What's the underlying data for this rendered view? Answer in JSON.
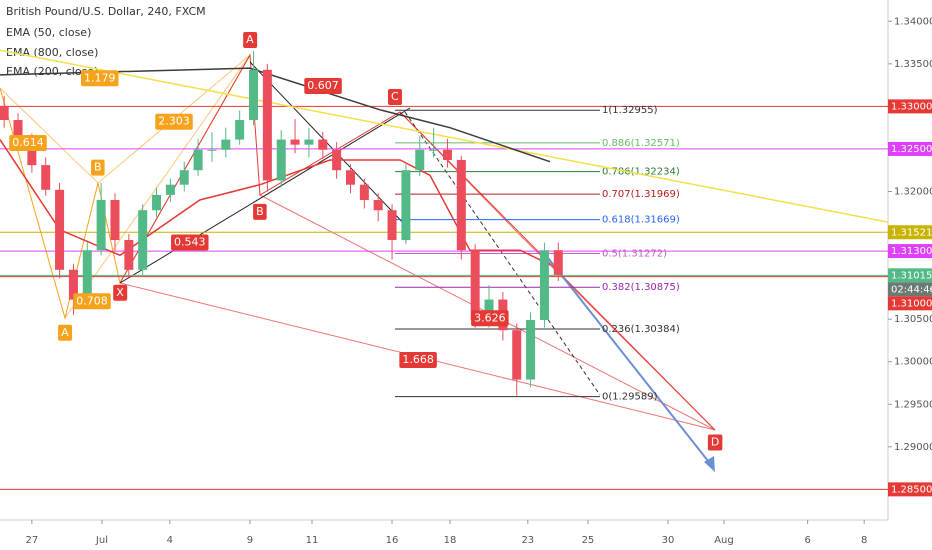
{
  "chart_data": {
    "type": "candlestick",
    "title": "British Pound/U.S. Dollar, 240, FXCM",
    "xlim": [
      -1.15,
      30.9
    ],
    "ylim": [
      1.2814,
      1.3425
    ],
    "xticks": [
      {
        "value": 0,
        "label": "27"
      },
      {
        "value": 2.53,
        "label": "Jul"
      },
      {
        "value": 4.98,
        "label": "4"
      },
      {
        "value": 7.87,
        "label": "9"
      },
      {
        "value": 10.11,
        "label": "11"
      },
      {
        "value": 13.0,
        "label": "16"
      },
      {
        "value": 15.09,
        "label": "18"
      },
      {
        "value": 17.9,
        "label": "23"
      },
      {
        "value": 20.07,
        "label": "25"
      },
      {
        "value": 22.96,
        "label": "30"
      },
      {
        "value": 24.98,
        "label": "Aug"
      },
      {
        "value": 28.0,
        "label": "6"
      },
      {
        "value": 30.04,
        "label": "8"
      }
    ],
    "yticks": [
      {
        "value": 1.34,
        "label": "1.34000"
      },
      {
        "value": 1.335,
        "label": "1.33500"
      },
      {
        "value": 1.32,
        "label": "1.32000"
      },
      {
        "value": 1.305,
        "label": "1.30500"
      },
      {
        "value": 1.3,
        "label": "1.30000"
      },
      {
        "value": 1.295,
        "label": "1.29500"
      },
      {
        "value": 1.29,
        "label": "1.29000"
      }
    ],
    "candles": {
      "up_color": "#53b987",
      "down_color": "#eb4d5c",
      "x": [
        -1,
        -0.5,
        0,
        0.5,
        1,
        1.5,
        2,
        2.5,
        3,
        3.5,
        4,
        4.5,
        5,
        5.5,
        6,
        6.5,
        7,
        7.5,
        8,
        8.5,
        9,
        9.5,
        10,
        10.5,
        11,
        11.5,
        12,
        12.5,
        13,
        13.5,
        14,
        14.5,
        15,
        15.5,
        16,
        16.5,
        17,
        17.5,
        18,
        18.5,
        19
      ],
      "open": [
        1.33,
        1.3284,
        1.3261,
        1.3231,
        1.3202,
        1.3108,
        1.3073,
        1.3131,
        1.319,
        1.3143,
        1.3108,
        1.3178,
        1.3196,
        1.3208,
        1.3225,
        1.3249,
        1.3249,
        1.3261,
        1.3284,
        1.3343,
        1.3213,
        1.3261,
        1.3255,
        1.3261,
        1.3249,
        1.3225,
        1.3208,
        1.319,
        1.3178,
        1.3143,
        1.3225,
        1.3249,
        1.3249,
        1.3237,
        1.3131,
        1.3049,
        1.3073,
        1.3037,
        1.2979,
        1.3049,
        1.3131
      ],
      "high": [
        1.3312,
        1.3292,
        1.3268,
        1.324,
        1.321,
        1.3115,
        1.314,
        1.321,
        1.3198,
        1.315,
        1.3185,
        1.3205,
        1.3215,
        1.3235,
        1.3262,
        1.327,
        1.3275,
        1.3295,
        1.3365,
        1.335,
        1.3272,
        1.3285,
        1.3275,
        1.327,
        1.3258,
        1.3232,
        1.3215,
        1.3198,
        1.3185,
        1.3232,
        1.3265,
        1.3275,
        1.3262,
        1.3242,
        1.3138,
        1.309,
        1.3082,
        1.3045,
        1.3058,
        1.314,
        1.314
      ],
      "low": [
        1.3275,
        1.325,
        1.3222,
        1.3195,
        1.3098,
        1.3055,
        1.3065,
        1.3125,
        1.313,
        1.31,
        1.3102,
        1.317,
        1.3188,
        1.32,
        1.3218,
        1.3235,
        1.324,
        1.3255,
        1.3278,
        1.32,
        1.3205,
        1.3245,
        1.324,
        1.3238,
        1.3215,
        1.3198,
        1.318,
        1.3165,
        1.312,
        1.3138,
        1.3218,
        1.324,
        1.3228,
        1.312,
        1.304,
        1.304,
        1.3025,
        1.296,
        1.297,
        1.304,
        1.3095
      ],
      "close": [
        1.3284,
        1.3261,
        1.3231,
        1.3202,
        1.3108,
        1.3073,
        1.3131,
        1.319,
        1.3143,
        1.3108,
        1.3178,
        1.3196,
        1.3208,
        1.3225,
        1.3249,
        1.3249,
        1.3261,
        1.3284,
        1.3343,
        1.3213,
        1.3261,
        1.3255,
        1.3261,
        1.3249,
        1.3225,
        1.3208,
        1.319,
        1.3178,
        1.3143,
        1.3225,
        1.3249,
        1.3249,
        1.3237,
        1.3131,
        1.3049,
        1.3073,
        1.3037,
        1.2979,
        1.3049,
        1.3131,
        1.3102
      ]
    },
    "series": [
      {
        "name": "EMA (50, close)",
        "color": "#e53935",
        "x": [
          -1.15,
          1.01,
          3.18,
          6.06,
          8.23,
          10.76,
          13.29,
          14.37,
          15.81,
          17.62,
          18.7
        ],
        "values": [
          1.3261,
          1.3155,
          1.3125,
          1.319,
          1.3208,
          1.3237,
          1.3237,
          1.3219,
          1.3131,
          1.3131,
          1.3114
        ]
      },
      {
        "name": "EMA (800, close)",
        "color": "#f2e14c",
        "x": [
          -1.15,
          30.9
        ],
        "values": [
          1.3366,
          1.3164
        ]
      },
      {
        "name": "EMA (200, close)",
        "color": "#3c3c3c",
        "x": [
          -1.15,
          7.87,
          12.56,
          15.09,
          18.7
        ],
        "values": [
          1.3337,
          1.3345,
          1.3296,
          1.3275,
          1.3235
        ]
      }
    ],
    "levels": [
      {
        "value": 1.33,
        "label": "1.33000",
        "color": "#e53935"
      },
      {
        "value": 1.325,
        "label": "1.32500",
        "color": "#e040fb"
      },
      {
        "value": 1.31521,
        "label": "1.31521",
        "color": "#c8b400"
      },
      {
        "value": 1.313,
        "label": "1.31300",
        "color": "#e040fb"
      },
      {
        "value": 1.31015,
        "label": "1.31015",
        "color": "#53b987",
        "countdown": "02:44:46"
      },
      {
        "value": 1.31,
        "label": "1.31000",
        "color": "#e53935"
      },
      {
        "value": 1.285,
        "label": "1.28500",
        "color": "#e53935"
      }
    ],
    "fib_levels": [
      {
        "value": 1.32955,
        "label": "1(1.32955)",
        "color": "#333333"
      },
      {
        "value": 1.32571,
        "label": "0.886(1.32571)",
        "color": "#66bb6a"
      },
      {
        "value": 1.32234,
        "label": "0.786(1.32234)",
        "color": "#2e7d32"
      },
      {
        "value": 1.31969,
        "label": "0.707(1.31969)",
        "color": "#b71c1c"
      },
      {
        "value": 1.31669,
        "label": "0.618(1.31669)",
        "color": "#2962ff"
      },
      {
        "value": 1.31272,
        "label": "0.5(1.31272)",
        "color": "#c060c8"
      },
      {
        "value": 1.30875,
        "label": "0.382(1.30875)",
        "color": "#9c27b0"
      },
      {
        "value": 1.30384,
        "label": "0.236(1.30384)",
        "color": "#333333"
      },
      {
        "value": 1.29589,
        "label": "0(1.29589)",
        "color": "#333333"
      }
    ],
    "annotations": [
      {
        "text": "0.614",
        "x": -0.14,
        "y": 1.3257,
        "color": "#f7a21b"
      },
      {
        "text": "1.179",
        "x": 2.45,
        "y": 1.3333,
        "color": "#f7a21b"
      },
      {
        "text": "2.303",
        "x": 5.13,
        "y": 1.3282,
        "color": "#f7a21b"
      },
      {
        "text": "0.708",
        "x": 2.17,
        "y": 1.3071,
        "color": "#f7a21b"
      },
      {
        "text": "A",
        "x": 1.19,
        "y": 1.3034,
        "color": "#f7a21b"
      },
      {
        "text": "B",
        "x": 2.38,
        "y": 1.3228,
        "color": "#f7a21b"
      },
      {
        "text": "0.607",
        "x": 10.51,
        "y": 1.3324,
        "color": "#e53935"
      },
      {
        "text": "0.543",
        "x": 5.7,
        "y": 1.314,
        "color": "#e53935"
      },
      {
        "text": "3.626",
        "x": 16.53,
        "y": 1.3051,
        "color": "#e53935"
      },
      {
        "text": "1.668",
        "x": 13.94,
        "y": 1.3002,
        "color": "#e53935"
      },
      {
        "text": "A",
        "x": 7.87,
        "y": 1.3378,
        "color": "#e53935"
      },
      {
        "text": "B",
        "x": 8.23,
        "y": 1.3176,
        "color": "#e53935"
      },
      {
        "text": "C",
        "x": 13.1,
        "y": 1.3311,
        "color": "#e53935"
      },
      {
        "text": "X",
        "x": 3.18,
        "y": 1.3081,
        "color": "#e53935"
      },
      {
        "text": "D",
        "x": 24.66,
        "y": 1.2905,
        "color": "#e53935"
      }
    ]
  }
}
